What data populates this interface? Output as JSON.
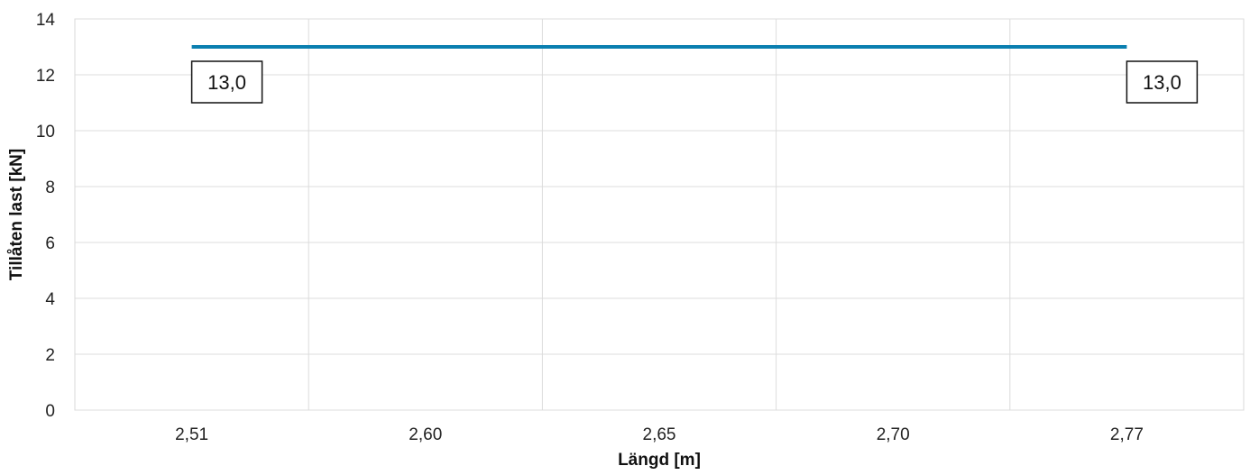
{
  "chart_data": {
    "type": "line",
    "title": "",
    "xlabel": "Längd [m]",
    "ylabel": "Tillåten last [kN]",
    "categories": [
      "2,51",
      "2,60",
      "2,65",
      "2,70",
      "2,77"
    ],
    "series": [
      {
        "values": [
          13.0,
          13.0,
          13.0,
          13.0,
          13.0
        ],
        "color": "#0a7fb0"
      }
    ],
    "data_labels": [
      {
        "index": 0,
        "text": "13,0"
      },
      {
        "index": 4,
        "text": "13,0"
      }
    ],
    "ylim": [
      0,
      14
    ],
    "yticks": [
      "0",
      "2",
      "4",
      "6",
      "8",
      "10",
      "12",
      "14"
    ],
    "grid": true,
    "legend": "none"
  }
}
